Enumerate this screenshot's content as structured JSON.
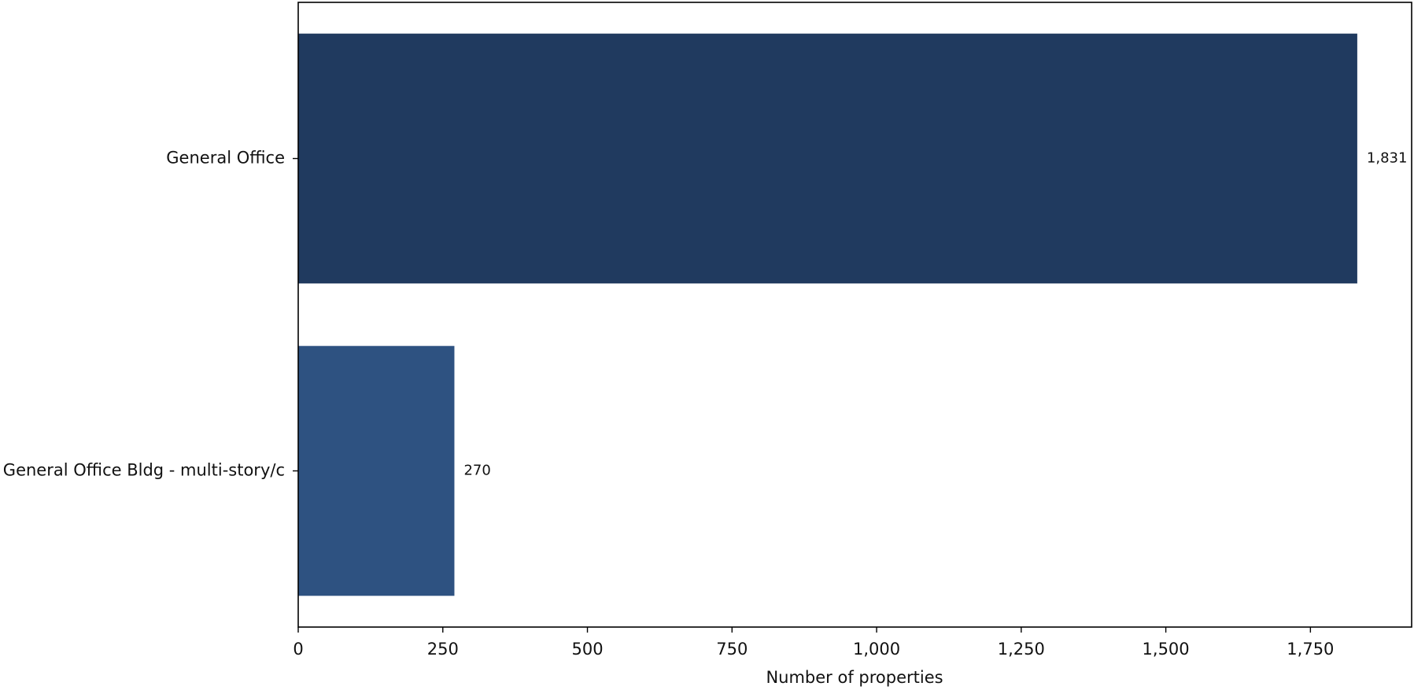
{
  "chart_data": {
    "type": "bar",
    "orientation": "horizontal",
    "categories": [
      "General Office",
      "General Office Bldg - multi-story/c"
    ],
    "values": [
      1831,
      270
    ],
    "value_labels": [
      "1,831",
      "270"
    ],
    "colors": [
      "#203a5f",
      "#2e5281"
    ],
    "xlabel": "Number of properties",
    "ylabel": "",
    "title": "",
    "xlim": [
      0,
      1925
    ],
    "xticks": [
      0,
      250,
      500,
      750,
      1000,
      1250,
      1500,
      1750
    ],
    "xtick_labels": [
      "0",
      "250",
      "500",
      "750",
      "1,000",
      "1,250",
      "1,500",
      "1,750"
    ],
    "grid": false,
    "legend": "none"
  }
}
